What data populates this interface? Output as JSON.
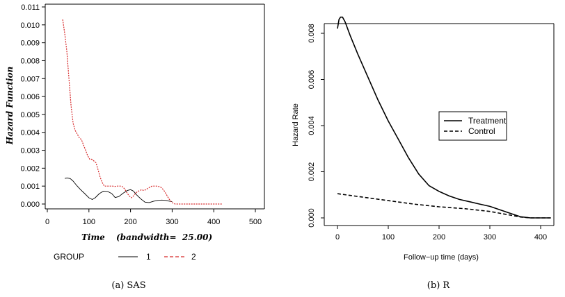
{
  "chart_data": [
    {
      "type": "line",
      "caption": "(a) SAS",
      "xlabel": "Time",
      "xlabel_suffix": "(bandwidth=  25.00)",
      "ylabel": "Hazard Function",
      "xlim": [
        0,
        500
      ],
      "ylim": [
        0,
        0.011
      ],
      "x_ticks": [
        0,
        100,
        200,
        300,
        400,
        500
      ],
      "y_ticks": [
        0,
        0.001,
        0.002,
        0.003,
        0.004,
        0.005,
        0.006,
        0.007,
        0.008,
        0.009,
        0.01,
        0.011
      ],
      "y_tick_labels": [
        "0.000",
        "0.001",
        "0.002",
        "0.003",
        "0.004",
        "0.005",
        "0.006",
        "0.007",
        "0.008",
        "0.009",
        "0.010",
        "0.011"
      ],
      "legend_title": "GROUP",
      "legend_placement": "bottom",
      "series": [
        {
          "name": "1",
          "color": "#000000",
          "dash": "solid",
          "x": [
            42,
            48,
            55,
            62,
            70,
            80,
            90,
            100,
            108,
            115,
            125,
            135,
            145,
            155,
            163,
            172,
            182,
            192,
            200,
            207,
            215,
            225,
            235,
            245,
            255,
            265,
            275,
            285,
            290,
            295,
            300
          ],
          "y": [
            0.00143,
            0.00145,
            0.00142,
            0.00128,
            0.00105,
            0.0008,
            0.00058,
            0.00035,
            0.00025,
            0.00035,
            0.00058,
            0.00072,
            0.0007,
            0.00058,
            0.00036,
            0.00042,
            0.0006,
            0.00075,
            0.0008,
            0.00072,
            0.0005,
            0.00028,
            0.0001,
            8e-05,
            0.00015,
            0.0002,
            0.00022,
            0.0002,
            0.00017,
            0.00015,
            0.00013
          ]
        },
        {
          "name": "2",
          "color": "#d62728",
          "dash": "dashed",
          "x": [
            37,
            42,
            47,
            52,
            57,
            62,
            67,
            72,
            77,
            82,
            87,
            92,
            97,
            102,
            107,
            112,
            117,
            122,
            127,
            132,
            137,
            142,
            147,
            152,
            157,
            162,
            167,
            172,
            177,
            182,
            187,
            192,
            197,
            202,
            207,
            212,
            217,
            222,
            227,
            232,
            237,
            242,
            247,
            252,
            257,
            262,
            267,
            272,
            277,
            282,
            287,
            292,
            297,
            302,
            307,
            312,
            330,
            360,
            390,
            420
          ],
          "y": [
            0.0103,
            0.0095,
            0.0085,
            0.007,
            0.0055,
            0.0045,
            0.0041,
            0.0039,
            0.0037,
            0.0036,
            0.0033,
            0.003,
            0.0027,
            0.0025,
            0.0025,
            0.0024,
            0.0023,
            0.0019,
            0.0015,
            0.0012,
            0.001,
            0.001,
            0.001,
            0.001,
            0.001,
            0.00098,
            0.001,
            0.001,
            0.001,
            0.00095,
            0.0008,
            0.0006,
            0.00045,
            0.00035,
            0.00045,
            0.0006,
            0.0007,
            0.00075,
            0.0008,
            0.00075,
            0.0008,
            0.00088,
            0.00095,
            0.001,
            0.001,
            0.001,
            0.00098,
            0.00095,
            0.00085,
            0.0007,
            0.0005,
            0.0003,
            0.00015,
            5e-05,
            0.0,
            0.0,
            0.0,
            0.0,
            0.0,
            0.0
          ]
        }
      ]
    },
    {
      "type": "line",
      "caption": "(b) R",
      "xlabel": "Follow−up time (days)",
      "ylabel": "Hazard Rate",
      "xlim": [
        -16,
        434
      ],
      "ylim": [
        -0.0003,
        0.0089
      ],
      "x_ticks": [
        0,
        100,
        200,
        300,
        400
      ],
      "y_ticks": [
        0,
        0.002,
        0.004,
        0.006,
        0.008
      ],
      "y_tick_labels": [
        "0.000",
        "0.002",
        "0.004",
        "0.006",
        "0.008"
      ],
      "legend_placement": "right",
      "series": [
        {
          "name": "Treatment",
          "color": "#000000",
          "dash": "solid",
          "x": [
            0,
            3,
            6,
            10,
            15,
            25,
            40,
            60,
            80,
            100,
            120,
            140,
            160,
            180,
            200,
            220,
            240,
            260,
            280,
            300,
            320,
            340,
            360,
            380,
            400,
            420
          ],
          "y": [
            0.0082,
            0.0086,
            0.0087,
            0.0087,
            0.0085,
            0.0079,
            0.0071,
            0.0061,
            0.0051,
            0.0042,
            0.0034,
            0.0026,
            0.0019,
            0.0014,
            0.00115,
            0.00095,
            0.0008,
            0.0007,
            0.0006,
            0.0005,
            0.00035,
            0.0002,
            5e-05,
            0.0,
            0.0,
            0.0
          ]
        },
        {
          "name": "Control",
          "color": "#000000",
          "dash": "dashed",
          "x": [
            0,
            50,
            100,
            150,
            200,
            250,
            300,
            340,
            360,
            380,
            400,
            420
          ],
          "y": [
            0.00105,
            0.0009,
            0.00075,
            0.0006,
            0.00048,
            0.0004,
            0.00028,
            0.00012,
            4e-05,
            0.0,
            0.0,
            0.0
          ]
        }
      ]
    }
  ]
}
